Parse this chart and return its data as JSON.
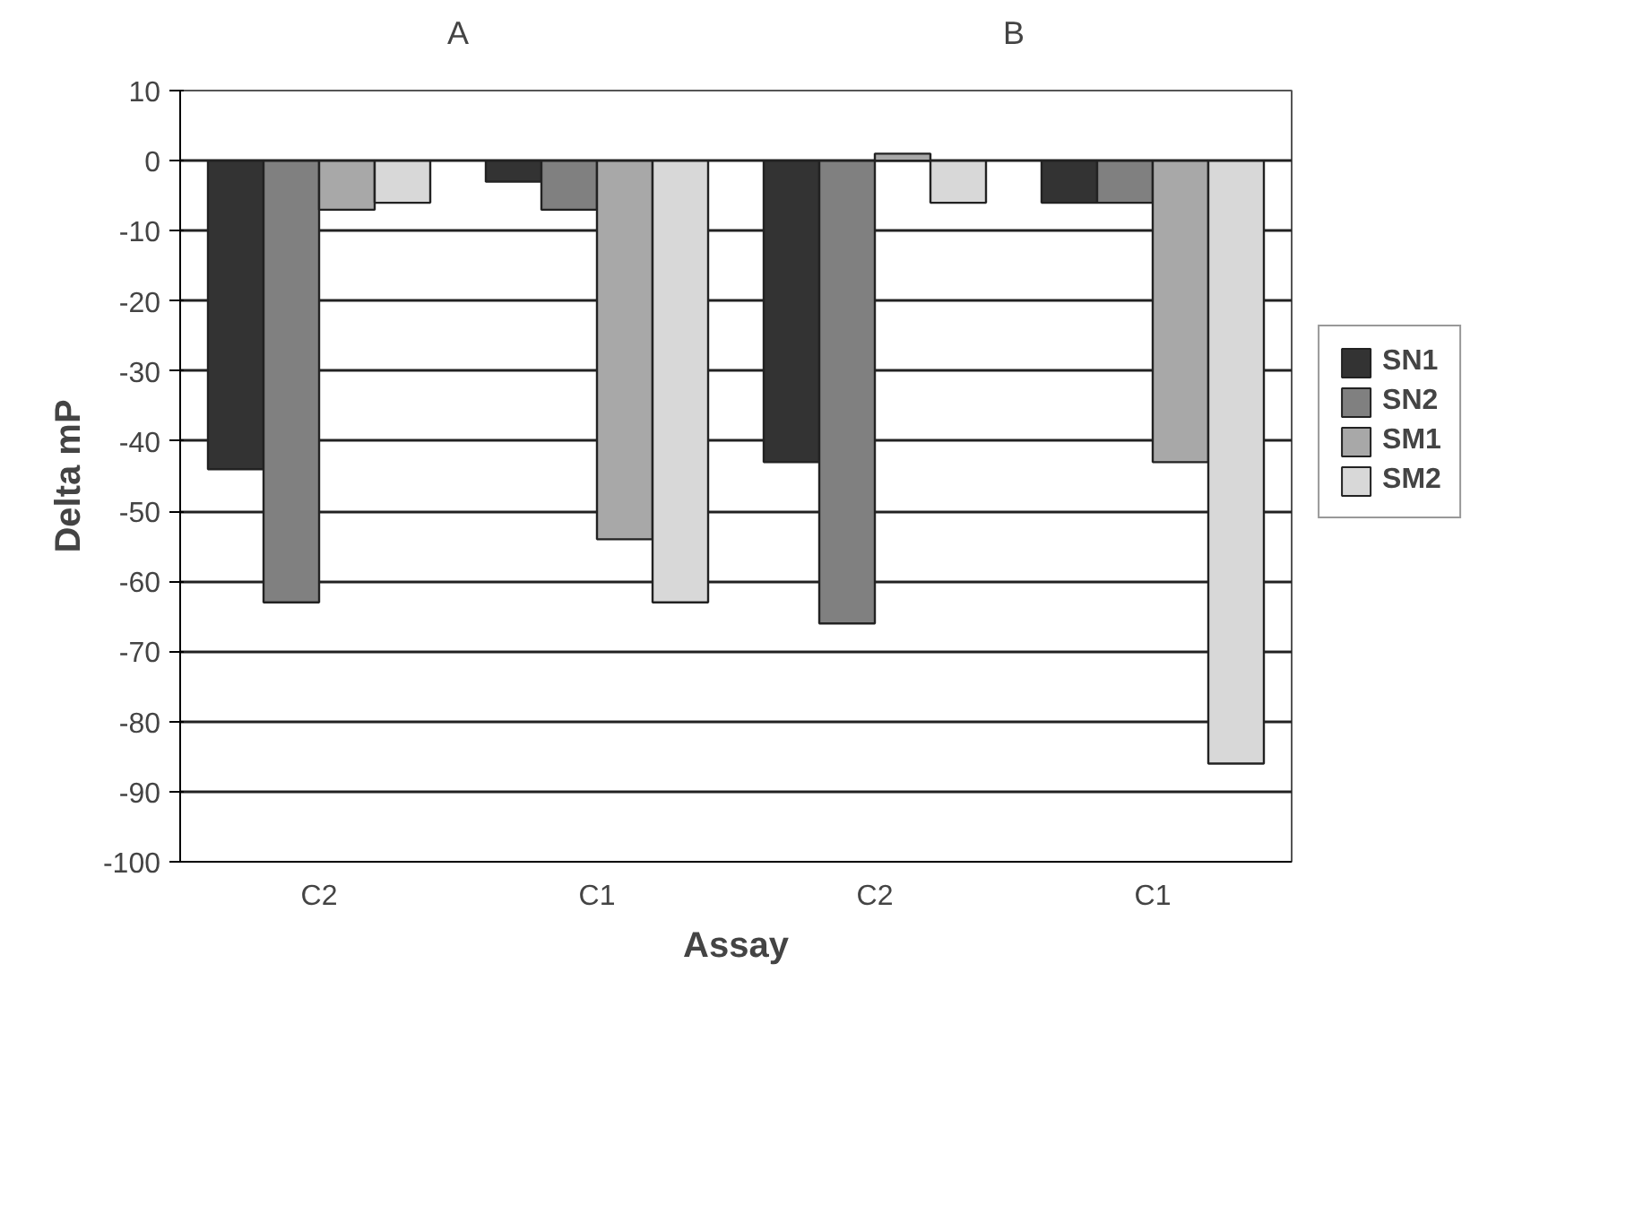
{
  "chart_data": {
    "type": "bar",
    "xlabel": "Assay",
    "ylabel": "Delta mP",
    "annotations": [
      "A",
      "B"
    ],
    "categories": [
      "C2",
      "C1",
      "C2",
      "C1"
    ],
    "series": [
      {
        "name": "SN1",
        "color": "#333333",
        "values": [
          -44,
          -3,
          -43,
          -6
        ]
      },
      {
        "name": "SN2",
        "color": "#808080",
        "values": [
          -63,
          -7,
          -66,
          -6
        ]
      },
      {
        "name": "SM1",
        "color": "#a8a8a8",
        "values": [
          -7,
          -54,
          1,
          -43
        ]
      },
      {
        "name": "SM2",
        "color": "#d8d8d8",
        "values": [
          -6,
          -63,
          -6,
          -86
        ]
      }
    ],
    "ylim": [
      -100,
      10
    ],
    "yticks": [
      10,
      0,
      -10,
      -20,
      -30,
      -40,
      -50,
      -60,
      -70,
      -80,
      -90,
      -100
    ],
    "grid": "y",
    "legend": "right"
  }
}
